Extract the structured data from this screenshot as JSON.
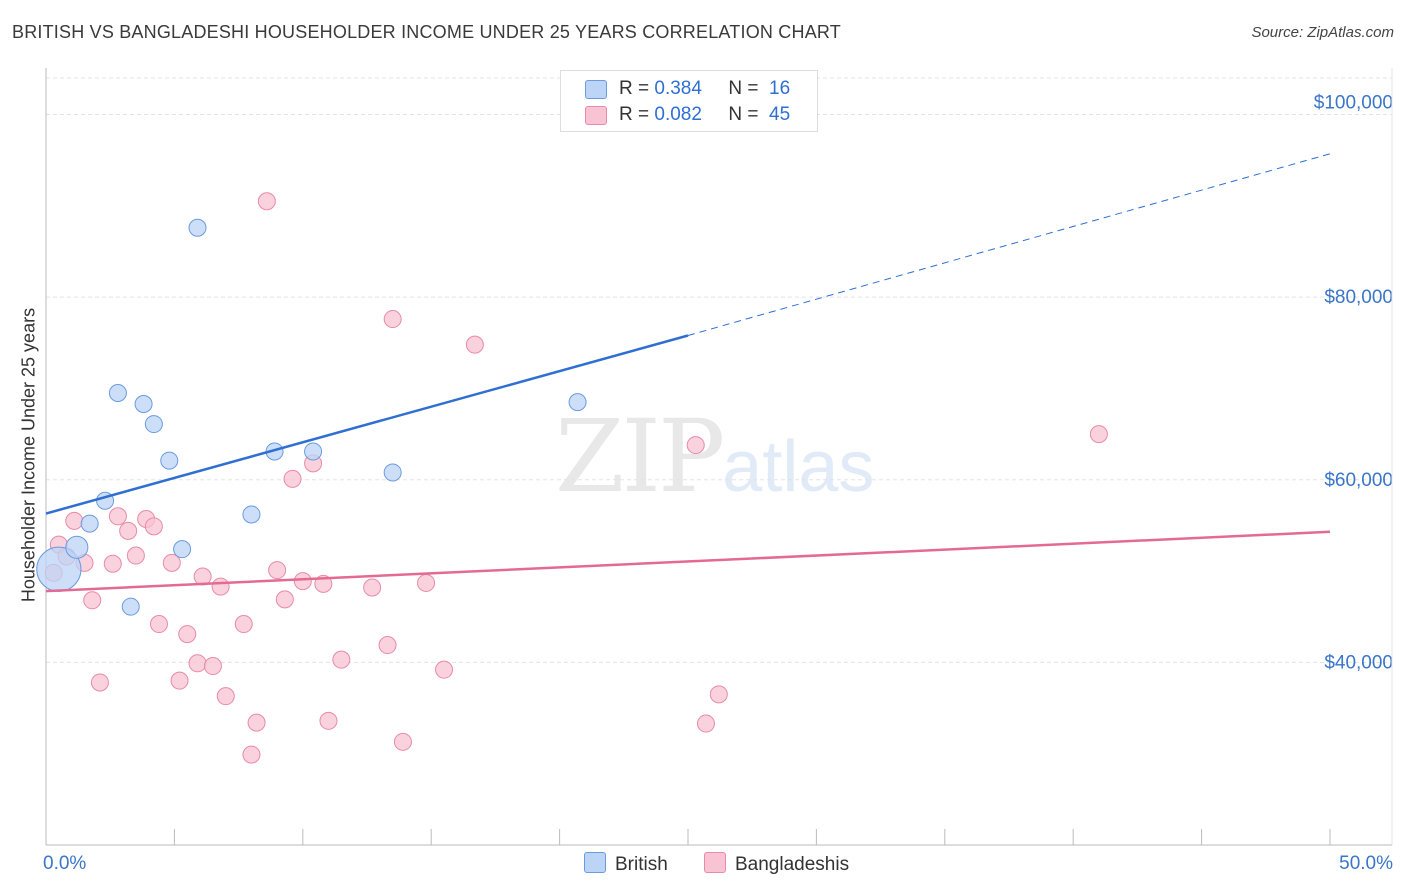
{
  "title": "BRITISH VS BANGLADESHI HOUSEHOLDER INCOME UNDER 25 YEARS CORRELATION CHART",
  "source": "Source: ZipAtlas.com",
  "watermark": {
    "zip": "ZIP",
    "atlas": "atlas"
  },
  "colors": {
    "british_fill": "#bcd4f5",
    "british_stroke": "#6a9be0",
    "british_line": "#2f6fd1",
    "bangladeshi_fill": "#f8c3d3",
    "bangladeshi_stroke": "#e98aa8",
    "bangladeshi_line": "#e46a94",
    "axis_text": "#3a75c8",
    "grid": "#e3e3e3"
  },
  "legend": {
    "british": {
      "r_label": "R =",
      "r_value": "0.384",
      "n_label": "N =",
      "n_value": "16"
    },
    "bangladeshi": {
      "r_label": "R =",
      "r_value": "0.082",
      "n_label": "N =",
      "n_value": "45"
    }
  },
  "bottom_legend": {
    "british": "British",
    "bangladeshi": "Bangladeshis"
  },
  "chart_data": {
    "type": "scatter",
    "title": "BRITISH VS BANGLADESHI HOUSEHOLDER INCOME UNDER 25 YEARS CORRELATION CHART",
    "xlabel": "",
    "ylabel": "Householder Income Under 25 years",
    "xlim": [
      0,
      50
    ],
    "ylim": [
      20000,
      104000
    ],
    "x_tick_labels": [
      "0.0%",
      "50.0%"
    ],
    "y_ticks": [
      40000,
      60000,
      80000,
      100000
    ],
    "y_tick_labels": [
      "$40,000",
      "$60,000",
      "$80,000",
      "$100,000"
    ],
    "grid": true,
    "series": [
      {
        "name": "British",
        "r": 0.384,
        "n": 16,
        "points": [
          [
            0.5,
            50200
          ],
          [
            1.2,
            52600
          ],
          [
            1.7,
            55200
          ],
          [
            2.3,
            57700
          ],
          [
            2.8,
            69500
          ],
          [
            3.8,
            68300
          ],
          [
            4.2,
            66100
          ],
          [
            4.8,
            62100
          ],
          [
            5.3,
            52400
          ],
          [
            5.9,
            87600
          ],
          [
            8.0,
            56200
          ],
          [
            8.9,
            63100
          ],
          [
            10.4,
            63100
          ],
          [
            13.5,
            60800
          ],
          [
            20.7,
            68500
          ],
          [
            3.3,
            46100
          ]
        ],
        "sizes": [
          2.6,
          1.3,
          1,
          1,
          1,
          1,
          1,
          1,
          1,
          1,
          1,
          1,
          1,
          1,
          1,
          1
        ],
        "trend": {
          "x_start": 0,
          "y_start": 56300,
          "x_solid_end": 25,
          "y_solid_end": 75800,
          "x_dash_end": 50,
          "y_dash_end": 95700
        }
      },
      {
        "name": "Bangladeshis",
        "r": 0.082,
        "n": 45,
        "points": [
          [
            0.3,
            49800
          ],
          [
            0.5,
            52900
          ],
          [
            0.8,
            51600
          ],
          [
            1.1,
            55500
          ],
          [
            1.5,
            50900
          ],
          [
            1.8,
            46800
          ],
          [
            2.1,
            37800
          ],
          [
            2.6,
            50800
          ],
          [
            2.8,
            56000
          ],
          [
            3.2,
            54400
          ],
          [
            3.5,
            51700
          ],
          [
            3.9,
            55700
          ],
          [
            4.2,
            54900
          ],
          [
            4.4,
            44200
          ],
          [
            4.9,
            50900
          ],
          [
            5.2,
            38000
          ],
          [
            5.5,
            43100
          ],
          [
            5.9,
            39900
          ],
          [
            6.1,
            49400
          ],
          [
            6.5,
            39600
          ],
          [
            6.8,
            48300
          ],
          [
            7.0,
            36300
          ],
          [
            7.7,
            44200
          ],
          [
            8.2,
            33400
          ],
          [
            8.0,
            29900
          ],
          [
            8.6,
            90500
          ],
          [
            9.0,
            50100
          ],
          [
            9.3,
            46900
          ],
          [
            9.6,
            60100
          ],
          [
            10.0,
            48900
          ],
          [
            10.4,
            61800
          ],
          [
            10.8,
            48600
          ],
          [
            11.0,
            33600
          ],
          [
            11.5,
            40300
          ],
          [
            12.7,
            48200
          ],
          [
            13.3,
            41900
          ],
          [
            13.5,
            77600
          ],
          [
            13.9,
            31300
          ],
          [
            14.8,
            48700
          ],
          [
            15.5,
            39200
          ],
          [
            16.7,
            74800
          ],
          [
            25.3,
            63800
          ],
          [
            25.7,
            33300
          ],
          [
            26.2,
            36500
          ],
          [
            41.0,
            65000
          ]
        ],
        "trend": {
          "x_start": 0,
          "y_start": 47800,
          "x_end": 50,
          "y_end": 54300
        }
      }
    ]
  }
}
